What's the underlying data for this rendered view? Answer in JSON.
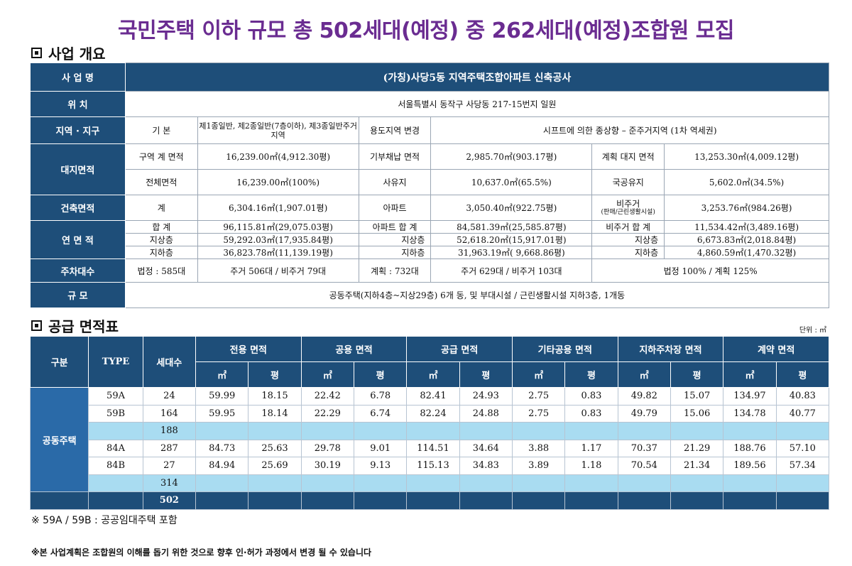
{
  "title": "국민주택 이하 규모 총 502세대(예정) 중 262세대(예정)조합원 모집",
  "overview": {
    "heading": "사업 개요",
    "project_name_label": "사 업 명",
    "project_name": "(가칭)사당5동 지역주택조합아파트 신축공사",
    "location_label": "위   치",
    "location": "서울특별시 동작구 사당동 217-15번지 일원",
    "zone_label": "지역 · 지구",
    "zone_basic_label": "기 본",
    "zone_basic": "제1종일반, 제2종일반(7층이하), 제3종일반주거지역",
    "zone_change_label": "용도지역 변경",
    "zone_change": "시프트에 의한 종상향 – 준주거지역 (1차 역세권)",
    "site_label": "대지면적",
    "site_area_label": "구역 계 면적",
    "site_area": "16,239.00㎡(4,912.30평)",
    "donation_label": "기부채납 면적",
    "donation": "2,985.70㎡(903.17평)",
    "plan_site_label": "계획 대지 면적",
    "plan_site": "13,253.30㎡(4,009.12평)",
    "total_area_label": "전체면적",
    "total_area": "16,239.00㎡(100%)",
    "private_label": "사유지",
    "private": "10,637.0㎡(65.5%)",
    "public_label": "국공유지",
    "public": "5,602.0㎡(34.5%)",
    "building_label": "건축면적",
    "building_total_label": "계",
    "building_total": "6,304.16㎡(1,907.01평)",
    "building_apt_label": "아파트",
    "building_apt": "3,050.40㎡(922.75평)",
    "building_nonres_label": "비주거",
    "building_nonres_sub": "(판매/근린생활시설)",
    "building_nonres": "3,253.76㎡(984.26평)",
    "floor_label": "연 면 적",
    "floor_total_label": "합   계",
    "floor_total": "96,115.81㎡(29,075.03평)",
    "floor_above_label": "지상층",
    "floor_above": "59,292.03㎡(17,935.84평)",
    "floor_below_label": "지하층",
    "floor_below": "36,823.78㎡(11,139.19평)",
    "apt_total_label": "아파트 합   계",
    "apt_total": "84,581.39㎡(25,585.87평)",
    "apt_above_label": "지상층",
    "apt_above": "52,618.20㎡(15,917.01평)",
    "apt_below_label": "지하층",
    "apt_below": "31,963.19㎡( 9,668.86평)",
    "nonres_total_label": "비주거 합   계",
    "nonres_total": "11,534.42㎡(3,489.16평)",
    "nonres_above_label": "지상층",
    "nonres_above": "6,673.83㎡(2,018.84평)",
    "nonres_below_label": "지하층",
    "nonres_below": "4,860.59㎡(1,470.32평)",
    "parking_label": "주차대수",
    "parking_legal": "법정 : 585대",
    "parking_legal_split": "주거 506대 / 비주거 79대",
    "parking_plan": "계획 : 732대",
    "parking_plan_split": "주거 629대 / 비주거 103대",
    "parking_ratio": "법정 100%   /   계획 125%",
    "scale_label": "규   모",
    "scale": "공동주택(지하4층~지상29층) 6개 동, 및 부대시설 / 근린생활시설 지하3층, 1개동"
  },
  "supply": {
    "heading": "공급 면적표",
    "unit": "단위 : ㎡",
    "headers": {
      "group": "구분",
      "type": "TYPE",
      "households": "세대수",
      "exclusive": "전용 면적",
      "common": "공용 면적",
      "supply": "공급 면적",
      "other_common": "기타공용 면적",
      "parking": "지하주차장 면적",
      "contract": "계약 면적",
      "sqm": "㎡",
      "pyeong": "평"
    },
    "group_name": "공동주택",
    "rows": [
      {
        "type": "59A",
        "households": "24",
        "v": [
          "59.99",
          "18.15",
          "22.42",
          "6.78",
          "82.41",
          "24.93",
          "2.75",
          "0.83",
          "49.82",
          "15.07",
          "134.97",
          "40.83"
        ]
      },
      {
        "type": "59B",
        "households": "164",
        "v": [
          "59.95",
          "18.14",
          "22.29",
          "6.74",
          "82.24",
          "24.88",
          "2.75",
          "0.83",
          "49.79",
          "15.06",
          "134.78",
          "40.77"
        ]
      },
      {
        "type": "",
        "households": "188",
        "subtotal": true,
        "v": [
          "",
          "",
          "",
          "",
          "",
          "",
          "",
          "",
          "",
          "",
          "",
          ""
        ]
      },
      {
        "type": "84A",
        "households": "287",
        "v": [
          "84.73",
          "25.63",
          "29.78",
          "9.01",
          "114.51",
          "34.64",
          "3.88",
          "1.17",
          "70.37",
          "21.29",
          "188.76",
          "57.10"
        ]
      },
      {
        "type": "84B",
        "households": "27",
        "v": [
          "84.94",
          "25.69",
          "30.19",
          "9.13",
          "115.13",
          "34.83",
          "3.89",
          "1.18",
          "70.54",
          "21.34",
          "189.56",
          "57.34"
        ]
      },
      {
        "type": "",
        "households": "314",
        "subtotal": true,
        "v": [
          "",
          "",
          "",
          "",
          "",
          "",
          "",
          "",
          "",
          "",
          "",
          ""
        ]
      },
      {
        "type": "",
        "households": "502",
        "total": true,
        "v": [
          "",
          "",
          "",
          "",
          "",
          "",
          "",
          "",
          "",
          "",
          "",
          ""
        ]
      }
    ]
  },
  "notes": {
    "note1": "※ 59A / 59B : 공공임대주택 포함",
    "note2": "※본 사업계획은 조합원의 이해를 돕기 위한 것으로 향후 인·허가 과정에서 변경 될 수 있습니다"
  }
}
